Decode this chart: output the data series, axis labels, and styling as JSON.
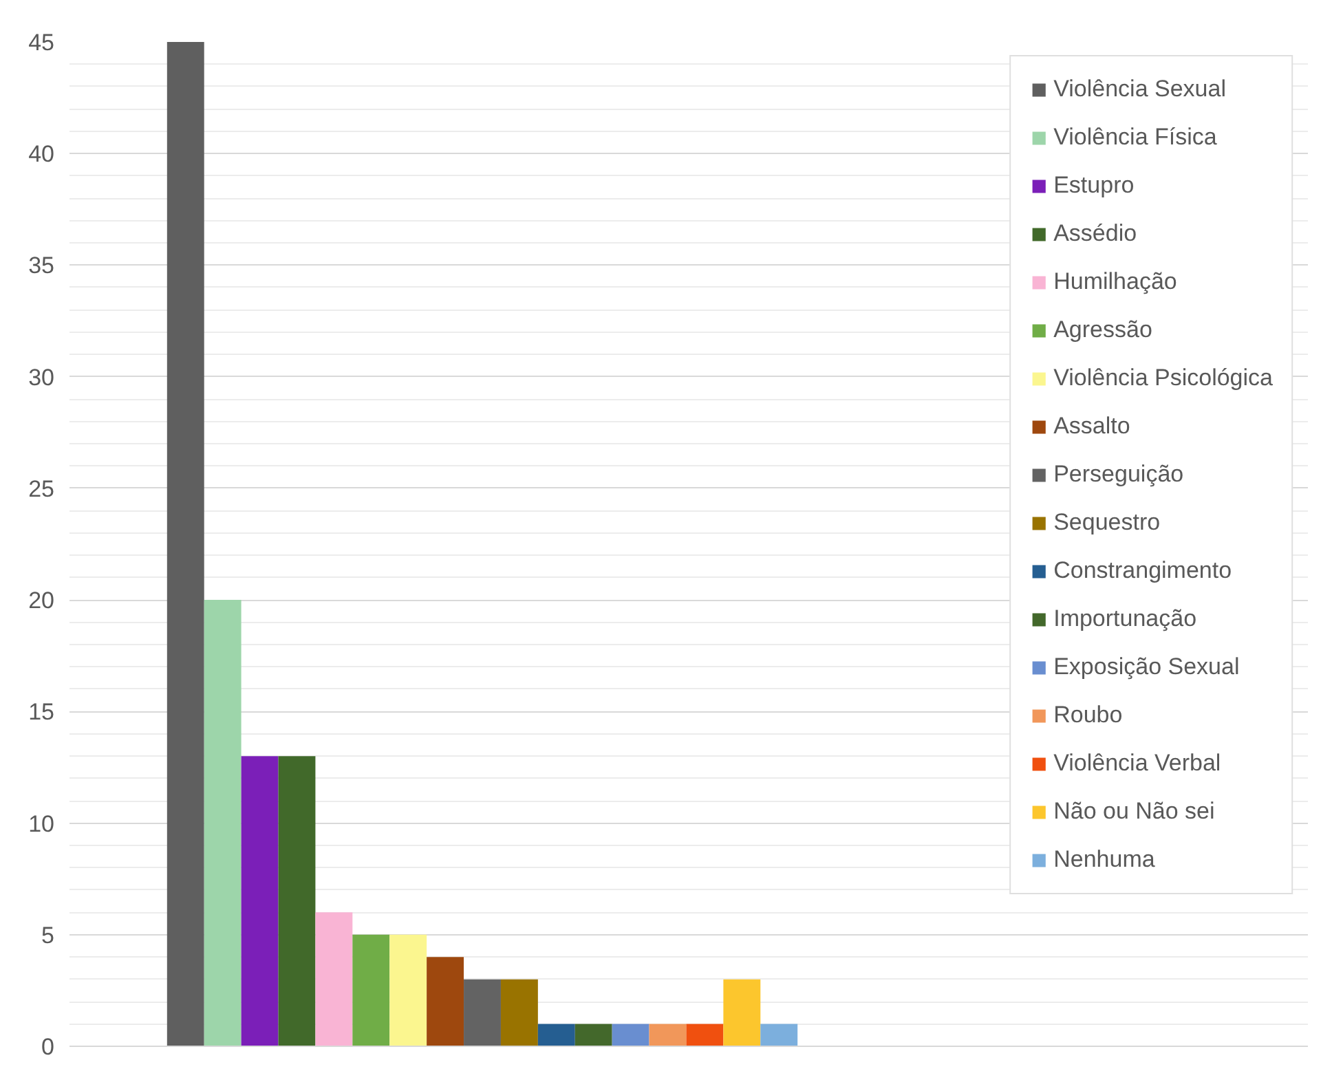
{
  "chart_data": {
    "type": "bar",
    "categories": [
      null
    ],
    "series": [
      {
        "name": "Violência Sexual",
        "color": "#5f5f5f",
        "values": [
          45
        ]
      },
      {
        "name": "Violência Física",
        "color": "#9dd5aa",
        "values": [
          20
        ]
      },
      {
        "name": "Estupro",
        "color": "#7b1fb8",
        "values": [
          13
        ]
      },
      {
        "name": "Assédio",
        "color": "#41692a",
        "values": [
          13
        ]
      },
      {
        "name": "Humilhação",
        "color": "#f9b4d4",
        "values": [
          6
        ]
      },
      {
        "name": "Agressão",
        "color": "#70ad47",
        "values": [
          5
        ]
      },
      {
        "name": "Violência Psicológica",
        "color": "#fbf68f",
        "values": [
          5
        ]
      },
      {
        "name": "Assalto",
        "color": "#9e480e",
        "values": [
          4
        ]
      },
      {
        "name": "Perseguição",
        "color": "#636363",
        "values": [
          3
        ]
      },
      {
        "name": "Sequestro",
        "color": "#997300",
        "values": [
          3
        ]
      },
      {
        "name": "Constrangimento",
        "color": "#255e91",
        "values": [
          1
        ]
      },
      {
        "name": "Importunação",
        "color": "#43682b",
        "values": [
          1
        ]
      },
      {
        "name": "Exposição Sexual",
        "color": "#698ed0",
        "values": [
          1
        ]
      },
      {
        "name": "Roubo",
        "color": "#f1975a",
        "values": [
          1
        ]
      },
      {
        "name": "Violência Verbal",
        "color": "#f0500f",
        "values": [
          1
        ]
      },
      {
        "name": "Não ou Não sei",
        "color": "#fcc62d",
        "values": [
          3
        ]
      },
      {
        "name": "Nenhuma",
        "color": "#7cafdd",
        "values": [
          1
        ]
      }
    ],
    "ylim": [
      0,
      45
    ],
    "yticks": [
      0,
      5,
      10,
      15,
      20,
      25,
      30,
      35,
      40,
      45
    ],
    "grid": "y",
    "legend": "right",
    "tick_labels": "y"
  }
}
